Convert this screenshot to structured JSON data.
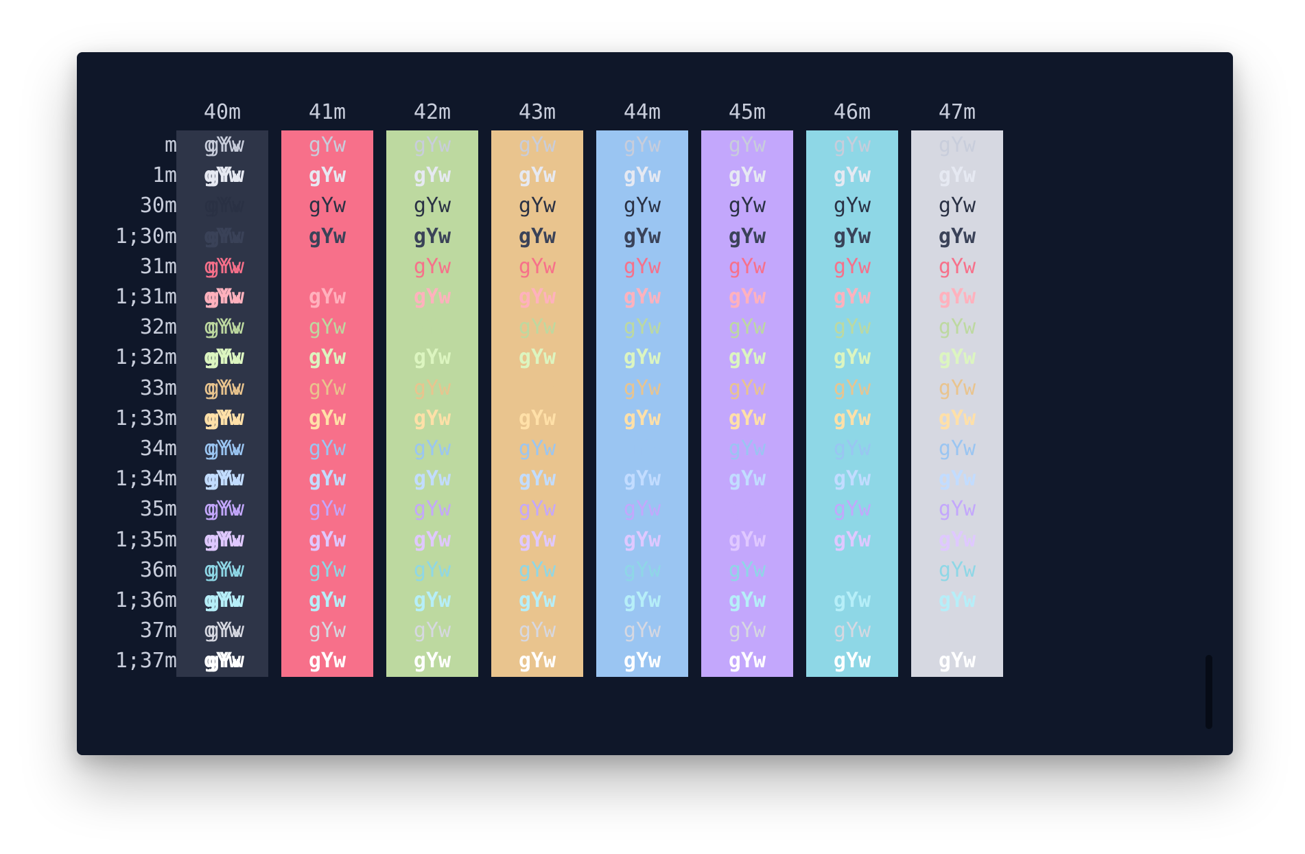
{
  "terminal": {
    "sample_text": "gYw",
    "default_fg": "#c8cddb",
    "default_bg": "#0f1729"
  },
  "header_labels": [
    "40m",
    "41m",
    "42m",
    "43m",
    "44m",
    "45m",
    "46m",
    "47m"
  ],
  "row_labels": [
    "m",
    "1m",
    "30m",
    "1;30m",
    "31m",
    "1;31m",
    "32m",
    "1;32m",
    "33m",
    "1;33m",
    "34m",
    "1;34m",
    "35m",
    "1;35m",
    "36m",
    "1;36m",
    "37m",
    "1;37m"
  ],
  "background_colors": [
    "#2e3548",
    "#f7708a",
    "#bdd9a0",
    "#e9c48e",
    "#9ac5f2",
    "#c3a7fc",
    "#8ed7e6",
    "#d6d8e1"
  ],
  "foreground_colors": {
    "m": "#c8cddb",
    "1m": "#e6e9f2",
    "30m": "#2a3144",
    "1;30m": "#3a4258",
    "31m": "#f7708a",
    "1;31m": "#ffb1bd",
    "32m": "#bdd9a0",
    "1;32m": "#dcf5c0",
    "33m": "#e9c48e",
    "1;33m": "#ffe0a8",
    "34m": "#9ac5f2",
    "1;34m": "#c2dcff",
    "35m": "#c3a7fc",
    "1;35m": "#dfc8ff",
    "36m": "#8ed7e6",
    "1;36m": "#b6eef8",
    "37m": "#d6d8e1",
    "1;37m": "#ffffff"
  }
}
